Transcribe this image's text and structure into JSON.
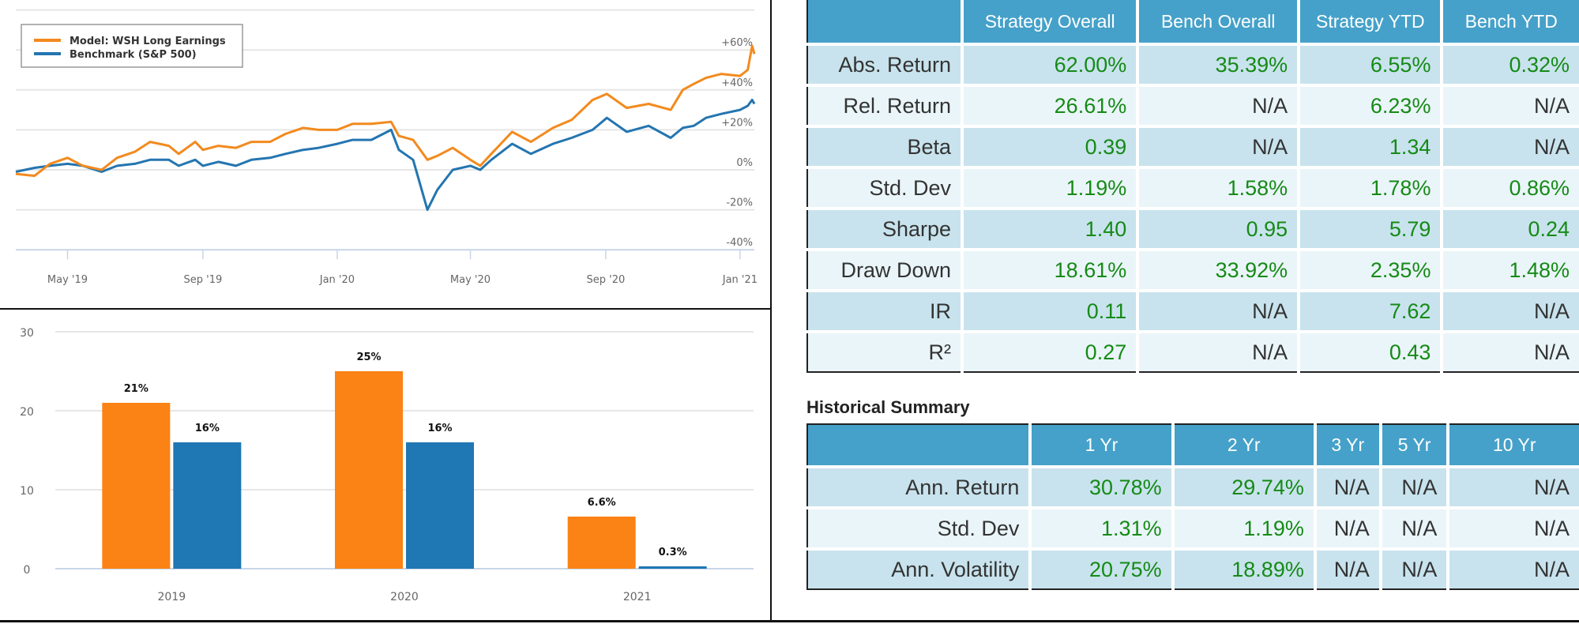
{
  "chart_data": [
    {
      "type": "line",
      "legend_position": "top-left",
      "grid": true,
      "ylim": [
        -40,
        80
      ],
      "y_ticks": [
        "-40%",
        "-20%",
        "0%",
        "+20%",
        "+40%",
        "+60%"
      ],
      "y_tick_values": [
        -40,
        -20,
        0,
        20,
        40,
        60
      ],
      "x_ticks": [
        "May '19",
        "Sep '19",
        "Jan '20",
        "May '20",
        "Sep '20",
        "Jan '21"
      ],
      "x_tick_dates": [
        "2019-05-01",
        "2019-09-01",
        "2020-01-01",
        "2020-05-01",
        "2020-09-01",
        "2021-01-01"
      ],
      "xlim": [
        "2019-03-15",
        "2021-01-14"
      ],
      "x": [
        "2019-03-15",
        "2019-04-01",
        "2019-04-15",
        "2019-05-01",
        "2019-05-15",
        "2019-06-01",
        "2019-06-15",
        "2019-07-01",
        "2019-07-15",
        "2019-08-01",
        "2019-08-10",
        "2019-08-25",
        "2019-09-01",
        "2019-09-15",
        "2019-10-01",
        "2019-10-15",
        "2019-11-01",
        "2019-11-15",
        "2019-12-01",
        "2019-12-15",
        "2020-01-01",
        "2020-01-15",
        "2020-02-01",
        "2020-02-19",
        "2020-02-26",
        "2020-03-10",
        "2020-03-23",
        "2020-04-01",
        "2020-04-15",
        "2020-05-01",
        "2020-05-10",
        "2020-05-20",
        "2020-06-08",
        "2020-06-25",
        "2020-07-15",
        "2020-08-01",
        "2020-08-20",
        "2020-09-02",
        "2020-09-20",
        "2020-10-10",
        "2020-10-30",
        "2020-11-10",
        "2020-11-20",
        "2020-12-01",
        "2020-12-15",
        "2021-01-01",
        "2021-01-08",
        "2021-01-12",
        "2021-01-14"
      ],
      "series": [
        {
          "name": "Model: WSH Long Earnings",
          "color": "#f28a1e",
          "values": [
            -2,
            -3,
            3,
            6,
            2,
            0,
            6,
            9,
            14,
            12,
            8,
            14,
            10,
            12,
            11,
            14,
            14,
            18,
            21,
            20,
            20,
            23,
            23,
            24,
            17,
            15,
            5,
            7,
            11,
            5,
            2,
            8,
            19,
            14,
            21,
            25,
            35,
            38,
            31,
            33,
            30,
            40,
            43,
            46,
            48,
            47,
            50,
            62,
            58
          ]
        },
        {
          "name": "Benchmark (S&P 500)",
          "color": "#2475b0",
          "values": [
            -1,
            1,
            2,
            3,
            2,
            -1,
            2,
            3,
            5,
            5,
            2,
            5,
            2,
            4,
            2,
            5,
            6,
            8,
            10,
            11,
            13,
            15,
            15,
            20,
            10,
            5,
            -20,
            -10,
            0,
            2,
            0,
            5,
            13,
            8,
            13,
            16,
            20,
            26,
            19,
            22,
            16,
            21,
            22,
            26,
            28,
            30,
            32,
            35,
            33
          ]
        }
      ]
    },
    {
      "type": "bar",
      "categories": [
        "2019",
        "2020",
        "2021"
      ],
      "ylim": [
        0,
        30
      ],
      "y_ticks": [
        "0",
        "10",
        "20",
        "30"
      ],
      "grid": true,
      "series": [
        {
          "color": "#fb8214",
          "values": [
            21,
            25,
            6.6
          ],
          "labels": [
            "21%",
            "25%",
            "6.6%"
          ]
        },
        {
          "color": "#1f77b4",
          "values": [
            16,
            16,
            0.3
          ],
          "labels": [
            "16%",
            "16%",
            "0.3%"
          ]
        }
      ]
    }
  ],
  "stats_table": {
    "headers": [
      "",
      "Strategy Overall",
      "Bench Overall",
      "Strategy YTD",
      "Bench YTD"
    ],
    "rows": [
      [
        "Abs. Return",
        "62.00%",
        "35.39%",
        "6.55%",
        "0.32%"
      ],
      [
        "Rel. Return",
        "26.61%",
        "N/A",
        "6.23%",
        "N/A"
      ],
      [
        "Beta",
        "0.39",
        "N/A",
        "1.34",
        "N/A"
      ],
      [
        "Std. Dev",
        "1.19%",
        "1.58%",
        "1.78%",
        "0.86%"
      ],
      [
        "Sharpe",
        "1.40",
        "0.95",
        "5.79",
        "0.24"
      ],
      [
        "Draw Down",
        "18.61%",
        "33.92%",
        "2.35%",
        "1.48%"
      ],
      [
        "IR",
        "0.11",
        "N/A",
        "7.62",
        "N/A"
      ],
      [
        "R²",
        "0.27",
        "N/A",
        "0.43",
        "N/A"
      ]
    ]
  },
  "historical_summary": {
    "title": "Historical Summary",
    "headers": [
      "",
      "1 Yr",
      "2 Yr",
      "3 Yr",
      "5 Yr",
      "10 Yr"
    ],
    "rows": [
      [
        "Ann. Return",
        "30.78%",
        "29.74%",
        "N/A",
        "N/A",
        "N/A"
      ],
      [
        "Std. Dev",
        "1.31%",
        "1.19%",
        "N/A",
        "N/A",
        "N/A"
      ],
      [
        "Ann. Volatility",
        "20.75%",
        "18.89%",
        "N/A",
        "N/A",
        "N/A"
      ]
    ]
  },
  "colors": {
    "header": "#45a1c9",
    "positive": "#168a16",
    "row_odd": "#c8e3ed",
    "row_even": "#eaf5f9"
  }
}
